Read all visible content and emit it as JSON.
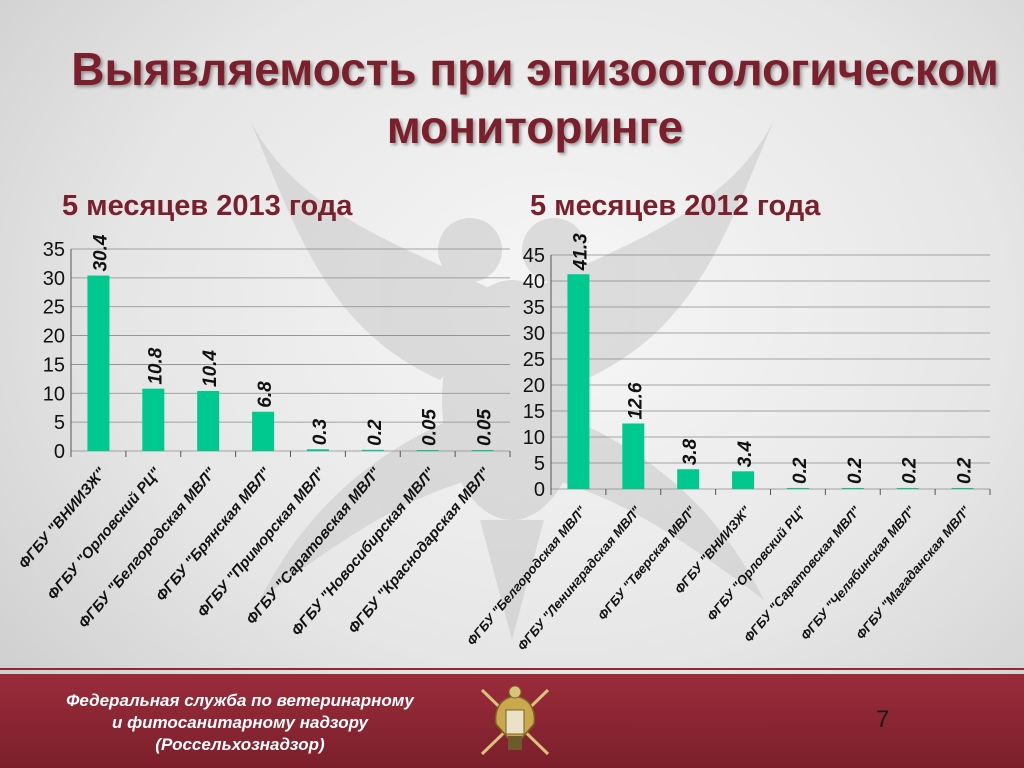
{
  "title": "Выявляемость при эпизоотологическом мониторинге",
  "colors": {
    "bar": "#00c98f",
    "title": "#7a1f2b",
    "footer": "#8e2a36"
  },
  "chart_data": [
    {
      "type": "bar",
      "title": "5 месяцев 2013 года",
      "xlabel": "",
      "ylabel": "",
      "ylim": [
        0,
        35
      ],
      "yticks": [
        0,
        5,
        10,
        15,
        20,
        25,
        30,
        35
      ],
      "grid": true,
      "categories": [
        "ФГБУ \"ВНИИЗЖ\"",
        "ФГБУ \"Орловский РЦ\"",
        "ФГБУ \"Белгородская МВЛ\"",
        "ФГБУ \"Брянская МВЛ\"",
        "ФГБУ \"Приморская МВЛ\"",
        "ФГБУ \"Саратовская МВЛ\"",
        "ФГБУ \"Новосибирская МВЛ\"",
        "ФГБУ \"Краснодарская МВЛ\""
      ],
      "values": [
        30.4,
        10.8,
        10.4,
        6.8,
        0.3,
        0.2,
        0.05,
        0.05
      ],
      "value_labels": [
        "30.4",
        "10.8",
        "10.4",
        "6.8",
        "0.3",
        "0.2",
        "0.05",
        "0.05"
      ]
    },
    {
      "type": "bar",
      "title": "5 месяцев 2012 года",
      "xlabel": "",
      "ylabel": "",
      "ylim": [
        0,
        45
      ],
      "yticks": [
        0,
        5,
        10,
        15,
        20,
        25,
        30,
        35,
        40,
        45
      ],
      "grid": true,
      "categories": [
        "ФГБУ \"Белгородская МВЛ\"",
        "ФГБУ \"Ленинградская МВЛ\"",
        "ФГБУ \"Тверская МВЛ\"",
        "ФГБУ \"ВНИИЗЖ\"",
        "ФГБУ \"Орловский РЦ\"",
        "ФГБУ \"Саратовская МВЛ\"",
        "ФГБУ \"Челябинская МВЛ\"",
        "ФГБУ \"Магаданская МВЛ\""
      ],
      "values": [
        41.3,
        12.6,
        3.8,
        3.4,
        0.2,
        0.2,
        0.2,
        0.2
      ],
      "value_labels": [
        "41.3",
        "12.6",
        "3.8",
        "3.4",
        "0.2",
        "0.2",
        "0.2",
        "0.2"
      ]
    }
  ],
  "footer": {
    "line1": "Федеральная служба по ветеринарному",
    "line2": "и фитосанитарному надзору",
    "line3": "(Россельхознадзор)"
  },
  "page_number": "7",
  "emblem": {
    "icon": "rosselkhoznadzor-emblem-icon",
    "watermark_icon": "double-headed-eagle-icon"
  }
}
